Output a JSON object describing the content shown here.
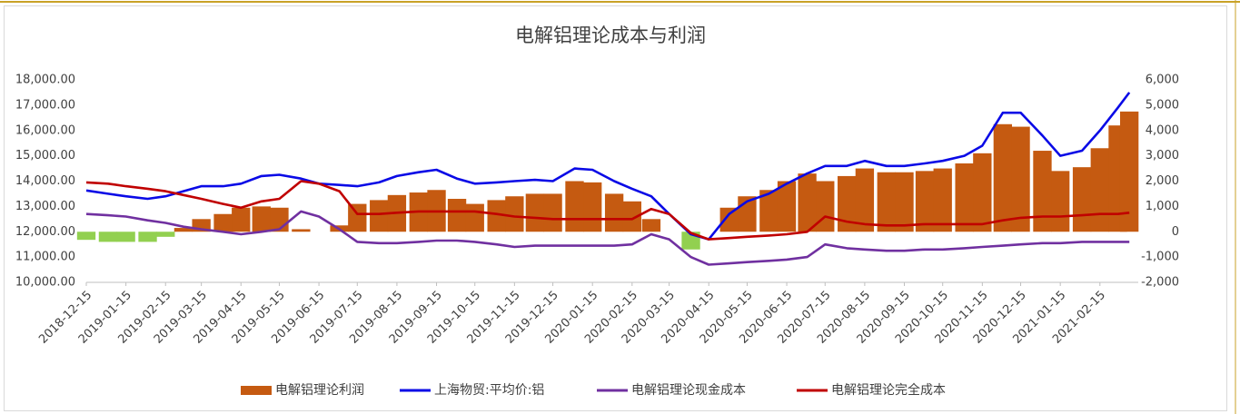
{
  "chart_data": {
    "type": "combo",
    "title": "电解铝理论成本与利润",
    "x": [
      "2018-12-15",
      "2019-01-01",
      "2019-01-15",
      "2019-02-01",
      "2019-02-15",
      "2019-03-01",
      "2019-03-15",
      "2019-04-01",
      "2019-04-15",
      "2019-05-01",
      "2019-05-15",
      "2019-06-01",
      "2019-06-15",
      "2019-07-01",
      "2019-07-15",
      "2019-08-01",
      "2019-08-15",
      "2019-09-01",
      "2019-09-15",
      "2019-10-01",
      "2019-10-15",
      "2019-11-01",
      "2019-11-15",
      "2019-12-01",
      "2019-12-15",
      "2020-01-01",
      "2020-01-15",
      "2020-02-01",
      "2020-02-15",
      "2020-03-01",
      "2020-03-15",
      "2020-04-01",
      "2020-04-15",
      "2020-05-01",
      "2020-05-15",
      "2020-06-01",
      "2020-06-15",
      "2020-07-01",
      "2020-07-15",
      "2020-08-01",
      "2020-08-15",
      "2020-09-01",
      "2020-09-15",
      "2020-10-01",
      "2020-10-15",
      "2020-11-01",
      "2020-11-15",
      "2020-12-01",
      "2020-12-15",
      "2021-01-01",
      "2021-01-15",
      "2021-02-01",
      "2021-02-15",
      "2021-03-01",
      "2021-03-10"
    ],
    "series": [
      {
        "name": "电解铝理论利润",
        "type": "bar",
        "axis": "y2",
        "color": "#c55a11",
        "negative_color": "#92d050",
        "values": [
          -320,
          -400,
          -400,
          -400,
          -200,
          150,
          500,
          700,
          950,
          1000,
          950,
          100,
          0,
          250,
          1100,
          1250,
          1450,
          1550,
          1650,
          1300,
          1100,
          1250,
          1400,
          1500,
          1500,
          2000,
          1950,
          1500,
          1200,
          500,
          0,
          -700,
          0,
          950,
          1400,
          1650,
          2000,
          2300,
          2000,
          2200,
          2500,
          2350,
          2350,
          2400,
          2500,
          2700,
          3100,
          4250,
          4150,
          3200,
          2400,
          2550,
          3300,
          4200,
          4750
        ]
      },
      {
        "name": "上海物贸:平均价:铝",
        "type": "line",
        "color": "#0a0ae6",
        "values": [
          13630,
          13500,
          13400,
          13300,
          13400,
          13600,
          13800,
          13800,
          13900,
          14200,
          14250,
          14100,
          13900,
          13850,
          13800,
          13950,
          14200,
          14350,
          14450,
          14100,
          13900,
          13950,
          14000,
          14050,
          14000,
          14500,
          14450,
          14000,
          13700,
          13400,
          12700,
          11900,
          11700,
          12700,
          13200,
          13500,
          13900,
          14300,
          14600,
          14600,
          14800,
          14600,
          14600,
          14700,
          14800,
          15000,
          15400,
          16700,
          16700,
          15800,
          15000,
          15200,
          16000,
          16900,
          17500
        ]
      },
      {
        "name": "电解铝理论现金成本",
        "type": "line",
        "color": "#7030a0",
        "values": [
          12700,
          12650,
          12600,
          12450,
          12350,
          12200,
          12100,
          12000,
          11900,
          12000,
          12100,
          12800,
          12600,
          12100,
          11600,
          11550,
          11550,
          11600,
          11650,
          11650,
          11600,
          11500,
          11400,
          11450,
          11450,
          11450,
          11450,
          11450,
          11500,
          11900,
          11700,
          11000,
          10700,
          10750,
          10800,
          10850,
          10900,
          11000,
          11500,
          11350,
          11300,
          11250,
          11250,
          11300,
          11300,
          11350,
          11400,
          11450,
          11500,
          11550,
          11550,
          11600,
          11600,
          11600,
          11600
        ]
      },
      {
        "name": "电解铝理论完全成本",
        "type": "line",
        "color": "#c00000",
        "values": [
          13950,
          13900,
          13800,
          13700,
          13600,
          13450,
          13300,
          13100,
          12950,
          13200,
          13300,
          14000,
          13900,
          13600,
          12700,
          12700,
          12750,
          12800,
          12800,
          12800,
          12800,
          12700,
          12600,
          12550,
          12500,
          12500,
          12500,
          12500,
          12500,
          12900,
          12700,
          11950,
          11700,
          11750,
          11800,
          11850,
          11900,
          12000,
          12600,
          12400,
          12300,
          12250,
          12250,
          12300,
          12300,
          12300,
          12300,
          12450,
          12550,
          12600,
          12600,
          12650,
          12700,
          12700,
          12750
        ]
      }
    ],
    "xlim": [
      "2018-12-15",
      "2021-03-17"
    ],
    "xticks": [
      "2018-12-15",
      "2019-01-15",
      "2019-02-15",
      "2019-03-15",
      "2019-04-15",
      "2019-05-15",
      "2019-06-15",
      "2019-07-15",
      "2019-08-15",
      "2019-09-15",
      "2019-10-15",
      "2019-11-15",
      "2019-12-15",
      "2020-01-15",
      "2020-02-15",
      "2020-03-15",
      "2020-04-15",
      "2020-05-15",
      "2020-06-15",
      "2020-07-15",
      "2020-08-15",
      "2020-09-15",
      "2020-10-15",
      "2020-11-15",
      "2020-12-15",
      "2021-01-15",
      "2021-02-15"
    ],
    "ylim": [
      10000,
      18000
    ],
    "yticks": [
      {
        "value": 10000,
        "label": "10,000.00"
      },
      {
        "value": 11000,
        "label": "11,000.00"
      },
      {
        "value": 12000,
        "label": "12,000.00"
      },
      {
        "value": 13000,
        "label": "13,000.00"
      },
      {
        "value": 14000,
        "label": "14,000.00"
      },
      {
        "value": 15000,
        "label": "15,000.00"
      },
      {
        "value": 16000,
        "label": "16,000.00"
      },
      {
        "value": 17000,
        "label": "17,000.00"
      },
      {
        "value": 18000,
        "label": "18,000.00"
      }
    ],
    "y2lim": [
      -2000,
      6000
    ],
    "y2ticks": [
      {
        "value": -2000,
        "label": "-2,000"
      },
      {
        "value": -1000,
        "label": "-1,000"
      },
      0,
      {
        "value": 1000,
        "label": "1,000"
      },
      {
        "value": 2000,
        "label": "2,000"
      },
      {
        "value": 3000,
        "label": "3,000"
      },
      {
        "value": 4000,
        "label": "4,000"
      },
      {
        "value": 5000,
        "label": "5,000"
      },
      {
        "value": 6000,
        "label": "6,000"
      }
    ],
    "legend": "bottom",
    "grid": false
  }
}
